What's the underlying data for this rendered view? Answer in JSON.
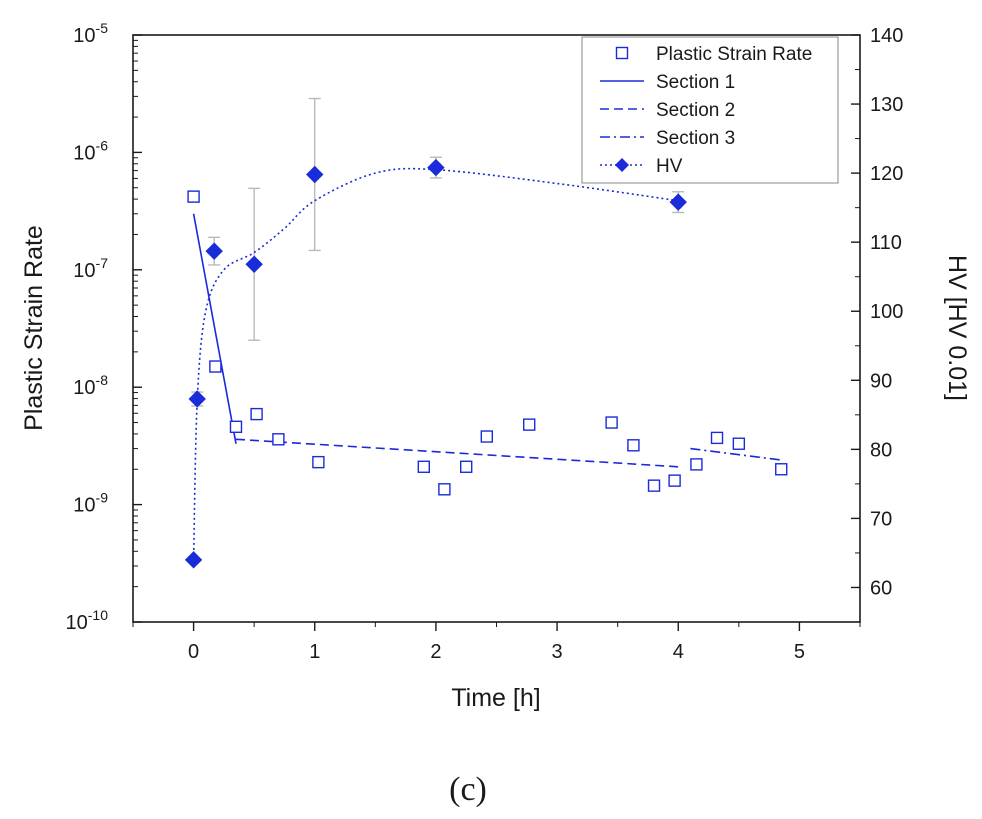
{
  "chart_data": {
    "type": "scatter",
    "panel_label": "(c)",
    "x_axis": {
      "label": "Time [h]",
      "range": [
        -0.5,
        5.5
      ],
      "ticks": [
        0,
        1,
        2,
        3,
        4,
        5
      ],
      "tick_labels": [
        "0",
        "1",
        "2",
        "3",
        "4",
        "5"
      ]
    },
    "y_left": {
      "label": "Plastic Strain Rate",
      "scale": "log",
      "range_log10": [
        -10,
        -5
      ],
      "ticks_log10": [
        -10,
        -9,
        -8,
        -7,
        -6,
        -5
      ],
      "tick_bases": [
        "10",
        "10",
        "10",
        "10",
        "10",
        "10"
      ],
      "tick_exponents": [
        "-10",
        "-9",
        "-8",
        "-7",
        "-6",
        "-5"
      ]
    },
    "y_right": {
      "label": "HV [HV 0.01]",
      "range": [
        55,
        140
      ],
      "ticks": [
        60,
        70,
        80,
        90,
        100,
        110,
        120,
        130,
        140
      ],
      "tick_labels": [
        "60",
        "70",
        "80",
        "90",
        "100",
        "110",
        "120",
        "130",
        "140"
      ]
    },
    "legend": {
      "position": "top-right",
      "entries": [
        "Plastic Strain Rate",
        "Section 1",
        "Section 2",
        "Section 3",
        "HV"
      ]
    },
    "series": [
      {
        "name": "Plastic Strain Rate",
        "axis": "left",
        "marker": "open-square",
        "points": [
          {
            "x": 0.0,
            "y": 4.2e-07
          },
          {
            "x": 0.18,
            "y": 1.5e-08
          },
          {
            "x": 0.35,
            "y": 4.6e-09
          },
          {
            "x": 0.52,
            "y": 5.9e-09
          },
          {
            "x": 0.7,
            "y": 3.6e-09
          },
          {
            "x": 1.03,
            "y": 2.3e-09
          },
          {
            "x": 1.9,
            "y": 2.1e-09
          },
          {
            "x": 2.07,
            "y": 1.35e-09
          },
          {
            "x": 2.25,
            "y": 2.1e-09
          },
          {
            "x": 2.42,
            "y": 3.8e-09
          },
          {
            "x": 2.77,
            "y": 4.8e-09
          },
          {
            "x": 3.45,
            "y": 5e-09
          },
          {
            "x": 3.63,
            "y": 3.2e-09
          },
          {
            "x": 3.8,
            "y": 1.45e-09
          },
          {
            "x": 3.97,
            "y": 1.6e-09
          },
          {
            "x": 4.15,
            "y": 2.2e-09
          },
          {
            "x": 4.32,
            "y": 3.7e-09
          },
          {
            "x": 4.5,
            "y": 3.3e-09
          },
          {
            "x": 4.85,
            "y": 2e-09
          }
        ]
      },
      {
        "name": "Section 1",
        "axis": "left",
        "line_style": "solid",
        "points": [
          {
            "x": 0.0,
            "y": 3e-07
          },
          {
            "x": 0.35,
            "y": 3.3e-09
          }
        ]
      },
      {
        "name": "Section 2",
        "axis": "left",
        "line_style": "dashed",
        "points": [
          {
            "x": 0.35,
            "y": 3.6e-09
          },
          {
            "x": 4.0,
            "y": 2.1e-09
          }
        ]
      },
      {
        "name": "Section 3",
        "axis": "left",
        "line_style": "dash-dot",
        "points": [
          {
            "x": 4.1,
            "y": 3e-09
          },
          {
            "x": 4.85,
            "y": 2.4e-09
          }
        ]
      },
      {
        "name": "HV",
        "axis": "right",
        "marker": "filled-diamond",
        "line_style": "dotted",
        "points": [
          {
            "x": 0.0,
            "y": 64,
            "err": 0
          },
          {
            "x": 0.03,
            "y": 87.3,
            "err": 1
          },
          {
            "x": 0.17,
            "y": 108.7,
            "err": 2
          },
          {
            "x": 0.5,
            "y": 106.8,
            "err": 11
          },
          {
            "x": 1.0,
            "y": 119.8,
            "err": 11
          },
          {
            "x": 2.0,
            "y": 120.8,
            "err": 1.5
          },
          {
            "x": 4.0,
            "y": 115.8,
            "err": 1.5
          }
        ],
        "smooth_curve": [
          {
            "x": 0.0,
            "y": 64
          },
          {
            "x": 0.03,
            "y": 87
          },
          {
            "x": 0.1,
            "y": 100
          },
          {
            "x": 0.25,
            "y": 106
          },
          {
            "x": 0.5,
            "y": 108.5
          },
          {
            "x": 0.75,
            "y": 112
          },
          {
            "x": 1.0,
            "y": 116
          },
          {
            "x": 1.5,
            "y": 120
          },
          {
            "x": 2.0,
            "y": 120.5
          },
          {
            "x": 3.0,
            "y": 118.5
          },
          {
            "x": 4.0,
            "y": 116
          }
        ]
      }
    ]
  },
  "colors": {
    "series": "#1a2bd9",
    "axis": "#1a1a1a",
    "errorbar": "#b5b5b5"
  }
}
